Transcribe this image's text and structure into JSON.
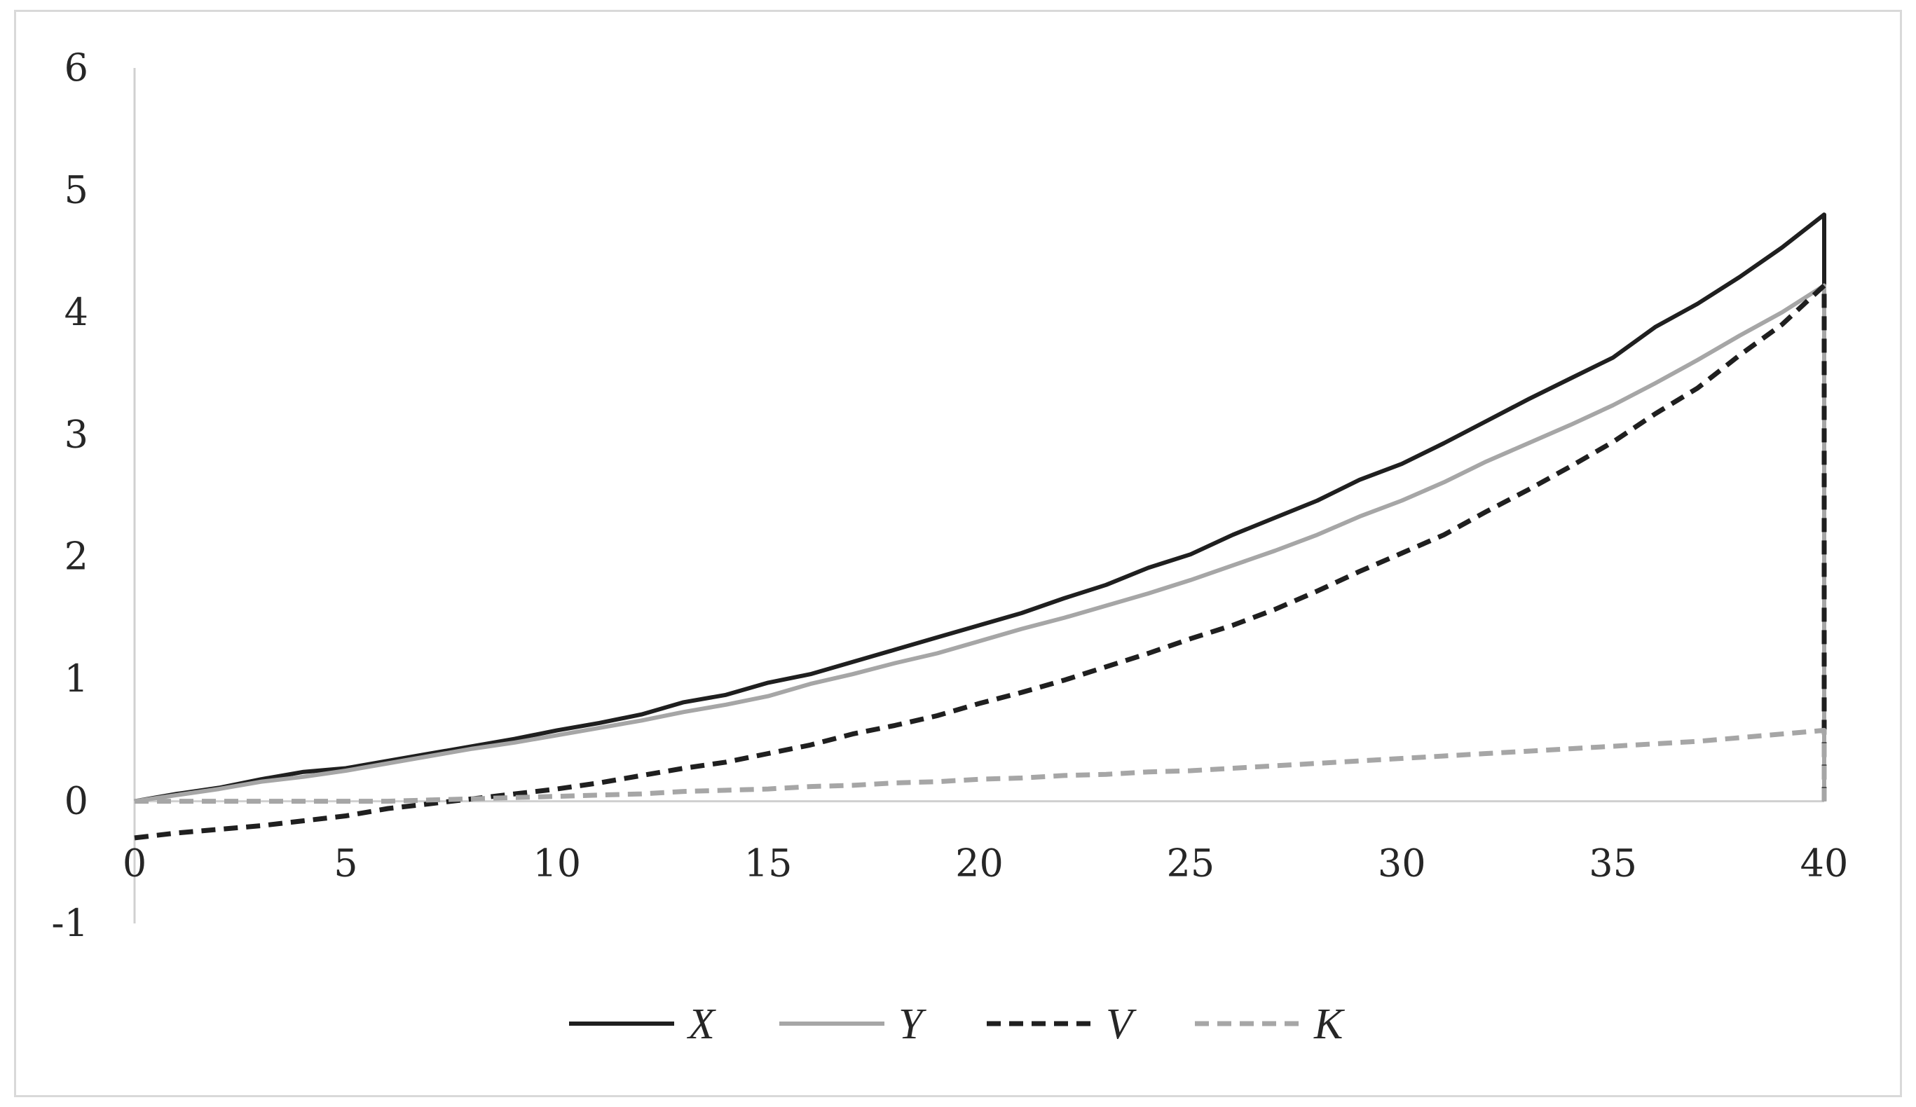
{
  "chart_data": {
    "type": "line",
    "title": "",
    "xlabel": "",
    "ylabel": "",
    "xlim": [
      0,
      40
    ],
    "ylim": [
      -1,
      6
    ],
    "x_ticks": [
      "0",
      "5",
      "10",
      "15",
      "20",
      "25",
      "30",
      "35",
      "40"
    ],
    "y_ticks": [
      "6",
      "5",
      "4",
      "3",
      "2",
      "1",
      "0",
      "-1"
    ],
    "grid": false,
    "legend_position": "bottom",
    "x": [
      0,
      1,
      2,
      3,
      4,
      5,
      6,
      7,
      8,
      9,
      10,
      11,
      12,
      13,
      14,
      15,
      16,
      17,
      18,
      19,
      20,
      21,
      22,
      23,
      24,
      25,
      26,
      27,
      28,
      29,
      30,
      31,
      32,
      33,
      34,
      35,
      36,
      37,
      38,
      39,
      40,
      40
    ],
    "series": [
      {
        "name": "X",
        "color": "#1f1f1f",
        "dash": "solid",
        "values": [
          0.0,
          0.06,
          0.11,
          0.18,
          0.24,
          0.27,
          0.33,
          0.39,
          0.45,
          0.51,
          0.58,
          0.64,
          0.71,
          0.81,
          0.87,
          0.97,
          1.04,
          1.14,
          1.24,
          1.34,
          1.44,
          1.54,
          1.66,
          1.77,
          1.91,
          2.02,
          2.18,
          2.32,
          2.46,
          2.63,
          2.76,
          2.93,
          3.11,
          3.29,
          3.46,
          3.63,
          3.88,
          4.07,
          4.29,
          4.53,
          4.8,
          0.0
        ]
      },
      {
        "name": "Y",
        "color": "#a6a6a6",
        "dash": "solid",
        "values": [
          0.0,
          0.05,
          0.1,
          0.16,
          0.2,
          0.25,
          0.31,
          0.37,
          0.43,
          0.48,
          0.54,
          0.6,
          0.66,
          0.73,
          0.79,
          0.86,
          0.96,
          1.04,
          1.13,
          1.21,
          1.31,
          1.41,
          1.5,
          1.6,
          1.7,
          1.81,
          1.93,
          2.05,
          2.18,
          2.33,
          2.46,
          2.61,
          2.78,
          2.93,
          3.08,
          3.24,
          3.42,
          3.61,
          3.81,
          4.0,
          4.22,
          0.0
        ]
      },
      {
        "name": "V",
        "color": "#1f1f1f",
        "dash": "dashed",
        "values": [
          -0.3,
          -0.26,
          -0.23,
          -0.2,
          -0.16,
          -0.12,
          -0.06,
          -0.02,
          0.02,
          0.06,
          0.1,
          0.15,
          0.21,
          0.27,
          0.32,
          0.39,
          0.46,
          0.55,
          0.62,
          0.7,
          0.8,
          0.89,
          0.99,
          1.1,
          1.21,
          1.33,
          1.44,
          1.57,
          1.72,
          1.88,
          2.03,
          2.18,
          2.37,
          2.55,
          2.74,
          2.94,
          3.17,
          3.38,
          3.65,
          3.9,
          4.22,
          0.0
        ]
      },
      {
        "name": "K",
        "color": "#a6a6a6",
        "dash": "dashed",
        "values": [
          0.0,
          0.0,
          0.0,
          0.0,
          0.0,
          0.0,
          0.0,
          0.01,
          0.02,
          0.03,
          0.04,
          0.05,
          0.06,
          0.08,
          0.09,
          0.1,
          0.12,
          0.13,
          0.15,
          0.16,
          0.18,
          0.19,
          0.21,
          0.22,
          0.24,
          0.25,
          0.27,
          0.29,
          0.31,
          0.33,
          0.35,
          0.37,
          0.39,
          0.41,
          0.43,
          0.45,
          0.47,
          0.49,
          0.52,
          0.55,
          0.58,
          0.0
        ]
      }
    ]
  }
}
